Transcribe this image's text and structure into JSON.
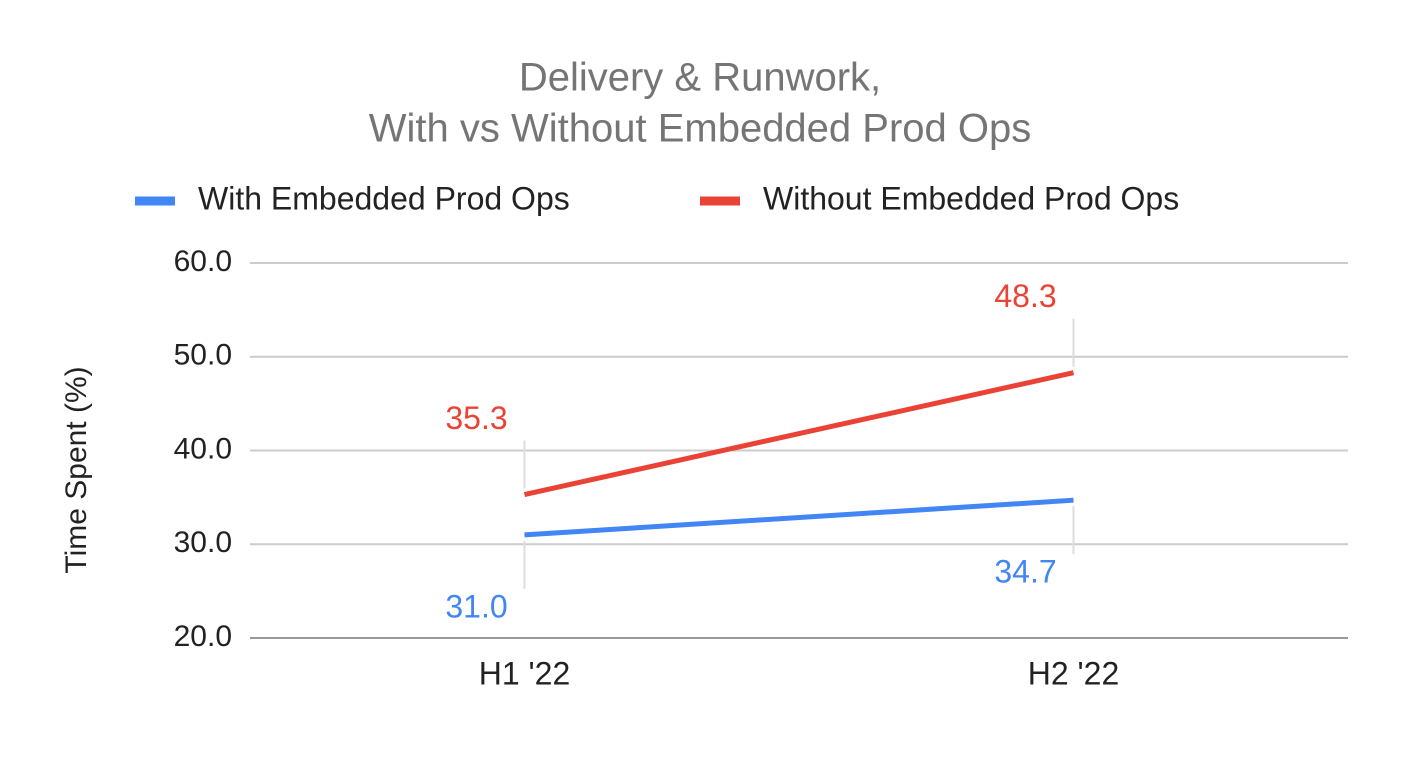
{
  "chart_data": {
    "type": "line",
    "title": [
      "Delivery & Runwork,",
      "With vs Without Embedded Prod Ops"
    ],
    "y_label": "Time Spent (%)",
    "categories": [
      "H1 '22",
      "H2 '22"
    ],
    "series": [
      {
        "name": "With Embedded Prod Ops",
        "color": "#4285f4",
        "values": [
          31.0,
          34.7
        ],
        "value_labels": [
          "31.0",
          "34.7"
        ],
        "label_position": "below"
      },
      {
        "name": "Without Embedded Prod Ops",
        "color": "#ea4335",
        "values": [
          35.3,
          48.3
        ],
        "value_labels": [
          "35.3",
          "48.3"
        ],
        "label_position": "above"
      }
    ],
    "ylim": [
      20,
      60
    ],
    "yticks": [
      {
        "value": 20,
        "label": "20.0"
      },
      {
        "value": 30,
        "label": "30.0"
      },
      {
        "value": 40,
        "label": "40.0"
      },
      {
        "value": 50,
        "label": "50.0"
      },
      {
        "value": 60,
        "label": "60.0"
      }
    ],
    "grid": true,
    "legend": "top"
  }
}
